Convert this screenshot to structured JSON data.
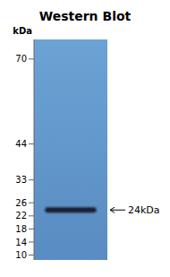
{
  "chart_data": {
    "type": "blot",
    "title": "Western Blot",
    "y_label": "kDa",
    "categories": [
      null
    ],
    "values": [
      23.8
    ],
    "color": "#1a1a2e",
    "ylim": [
      8.5,
      76
    ],
    "yticks": [
      70,
      44,
      33,
      26,
      22,
      18,
      14,
      10
    ],
    "grid": false,
    "tick_labels": "y",
    "annotations": [
      {
        "text": "24kDa",
        "y": 23.8
      }
    ]
  }
}
